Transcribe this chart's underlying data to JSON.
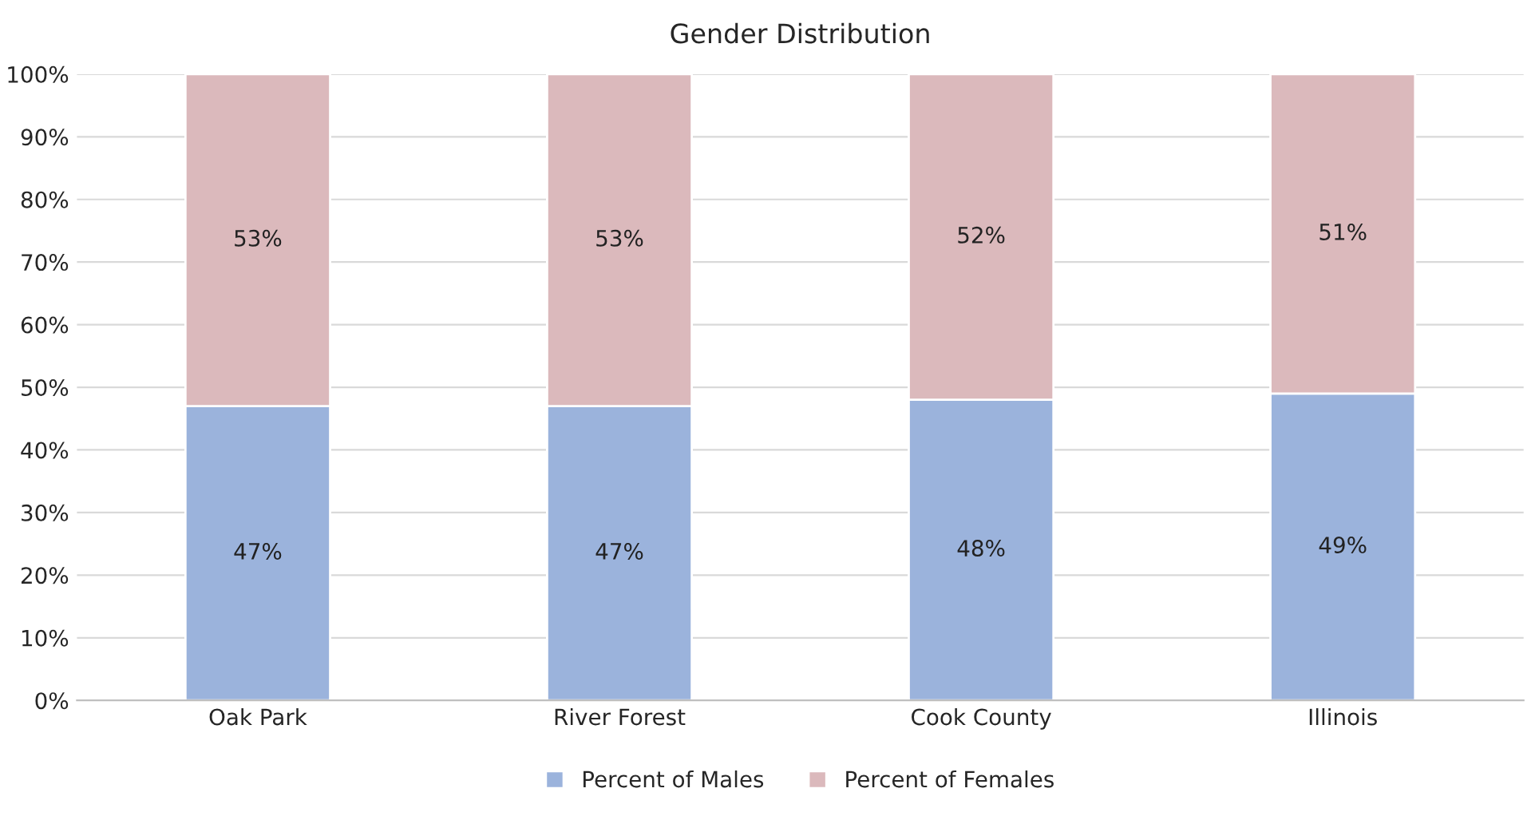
{
  "chart_data": {
    "type": "bar",
    "title": "Gender Distribution",
    "stacked": true,
    "categories": [
      "Oak Park",
      "River Forest",
      "Cook County",
      "Illinois"
    ],
    "series": [
      {
        "name": "Percent of Males",
        "color": "#9bb3dc",
        "values": [
          47,
          47,
          48,
          49
        ],
        "value_labels": [
          "47%",
          "47%",
          "48%",
          "49%"
        ]
      },
      {
        "name": "Percent of Females",
        "color": "#dbb9bc",
        "values": [
          53,
          53,
          52,
          51
        ],
        "value_labels": [
          "53%",
          "53%",
          "52%",
          "51%"
        ]
      }
    ],
    "ylim": [
      0,
      100
    ],
    "yticks": [
      {
        "value": 0,
        "label": "0%"
      },
      {
        "value": 10,
        "label": "10%"
      },
      {
        "value": 20,
        "label": "20%"
      },
      {
        "value": 30,
        "label": "30%"
      },
      {
        "value": 40,
        "label": "40%"
      },
      {
        "value": 50,
        "label": "50%"
      },
      {
        "value": 60,
        "label": "60%"
      },
      {
        "value": 70,
        "label": "70%"
      },
      {
        "value": 80,
        "label": "80%"
      },
      {
        "value": 90,
        "label": "90%"
      },
      {
        "value": 100,
        "label": "100%"
      }
    ],
    "grid": "y",
    "legend": "bottom"
  }
}
